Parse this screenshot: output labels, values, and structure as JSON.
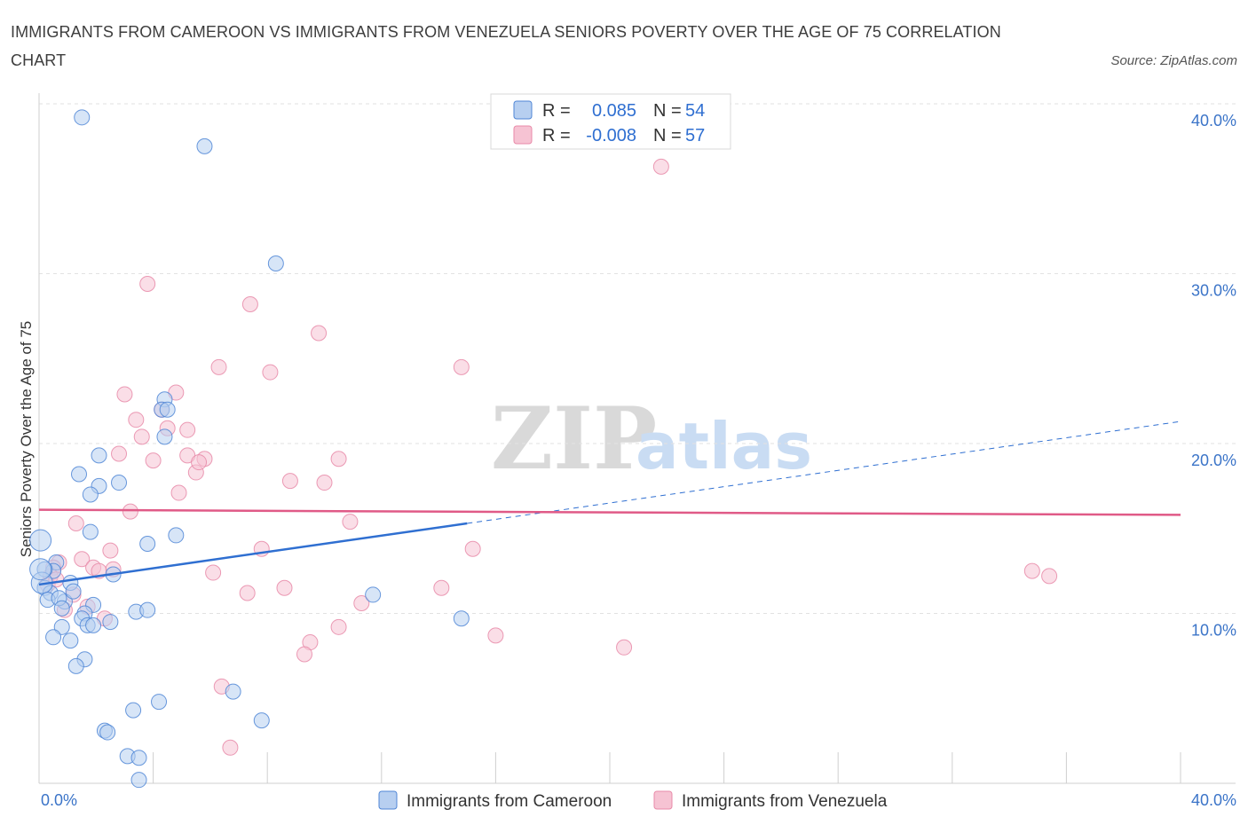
{
  "header": {
    "title": "IMMIGRANTS FROM CAMEROON VS IMMIGRANTS FROM VENEZUELA SENIORS POVERTY OVER THE AGE OF 75 CORRELATION CHART",
    "source": "Source: ZipAtlas.com"
  },
  "watermark": {
    "zip": "ZIP",
    "atlas": "atlas"
  },
  "legend": {
    "rows": [
      {
        "r_label": "R =",
        "r_value": "0.085",
        "n_label": "N =",
        "n_value": "54"
      },
      {
        "r_label": "R =",
        "r_value": "-0.008",
        "n_label": "N =",
        "n_value": "57"
      }
    ]
  },
  "chart_data": {
    "type": "scatter",
    "title": "IMMIGRANTS FROM CAMEROON VS IMMIGRANTS FROM VENEZUELA SENIORS POVERTY OVER THE AGE OF 75 CORRELATION CHART",
    "xlabel": "",
    "ylabel": "Seniors Poverty Over the Age of 75",
    "xlim": [
      0,
      40
    ],
    "ylim": [
      0,
      40
    ],
    "x_tick_labels": [
      "0.0%",
      "40.0%"
    ],
    "y_tick_values": [
      10,
      20,
      30,
      40
    ],
    "y_tick_labels": [
      "10.0%",
      "20.0%",
      "30.0%",
      "40.0%"
    ],
    "grid": true,
    "legend_position": "bottom",
    "series": [
      {
        "name": "Immigrants from Cameroon",
        "color": "#4f86d6",
        "fill": "#b7cff0",
        "trend": {
          "x": [
            0,
            15
          ],
          "y": [
            11.7,
            15.3
          ],
          "dashed_to_x": 40,
          "dashed_to_y": 21.3,
          "color": "#2f6fd1"
        },
        "points": [
          [
            1.5,
            39.2
          ],
          [
            5.8,
            37.5
          ],
          [
            8.3,
            30.6
          ],
          [
            4.4,
            22.6
          ],
          [
            4.3,
            22.0
          ],
          [
            4.5,
            22.0
          ],
          [
            4.4,
            20.4
          ],
          [
            2.1,
            19.3
          ],
          [
            1.4,
            18.2
          ],
          [
            2.8,
            17.7
          ],
          [
            2.1,
            17.5
          ],
          [
            1.8,
            17.0
          ],
          [
            0.05,
            14.3
          ],
          [
            1.8,
            14.8
          ],
          [
            3.8,
            14.1
          ],
          [
            4.8,
            14.6
          ],
          [
            0.6,
            13.0
          ],
          [
            0.5,
            12.5
          ],
          [
            0.2,
            12.6
          ],
          [
            2.6,
            12.3
          ],
          [
            0.2,
            11.5
          ],
          [
            1.1,
            11.8
          ],
          [
            0.4,
            11.2
          ],
          [
            0.1,
            11.8
          ],
          [
            0.3,
            10.8
          ],
          [
            0.9,
            10.7
          ],
          [
            0.7,
            10.9
          ],
          [
            0.8,
            10.3
          ],
          [
            1.9,
            10.5
          ],
          [
            3.4,
            10.1
          ],
          [
            3.8,
            10.2
          ],
          [
            1.6,
            10.0
          ],
          [
            1.5,
            9.7
          ],
          [
            1.7,
            9.3
          ],
          [
            2.5,
            9.5
          ],
          [
            1.9,
            9.3
          ],
          [
            0.8,
            9.2
          ],
          [
            0.5,
            8.6
          ],
          [
            1.1,
            8.4
          ],
          [
            11.7,
            11.1
          ],
          [
            14.8,
            9.7
          ],
          [
            1.6,
            7.3
          ],
          [
            1.3,
            6.9
          ],
          [
            4.2,
            4.8
          ],
          [
            3.3,
            4.3
          ],
          [
            6.8,
            5.4
          ],
          [
            7.8,
            3.7
          ],
          [
            2.3,
            3.1
          ],
          [
            2.4,
            3.0
          ],
          [
            3.1,
            1.6
          ],
          [
            3.5,
            1.5
          ],
          [
            3.5,
            0.2
          ],
          [
            0.05,
            12.6
          ],
          [
            1.2,
            11.3
          ]
        ]
      },
      {
        "name": "Immigrants from Venezuela",
        "color": "#e88aa8",
        "fill": "#f6c3d3",
        "trend": {
          "x": [
            0,
            40
          ],
          "y": [
            16.1,
            15.8
          ],
          "color": "#e05a87"
        },
        "points": [
          [
            21.8,
            36.3
          ],
          [
            3.8,
            29.4
          ],
          [
            7.4,
            28.2
          ],
          [
            9.8,
            26.5
          ],
          [
            6.3,
            24.5
          ],
          [
            8.1,
            24.2
          ],
          [
            14.8,
            24.5
          ],
          [
            3.0,
            22.9
          ],
          [
            4.8,
            23.0
          ],
          [
            3.4,
            21.4
          ],
          [
            4.3,
            22.0
          ],
          [
            4.5,
            20.9
          ],
          [
            3.6,
            20.4
          ],
          [
            5.2,
            20.8
          ],
          [
            2.8,
            19.4
          ],
          [
            5.2,
            19.3
          ],
          [
            5.8,
            19.1
          ],
          [
            5.5,
            18.3
          ],
          [
            4.0,
            19.0
          ],
          [
            5.6,
            18.9
          ],
          [
            10.5,
            19.1
          ],
          [
            8.8,
            17.8
          ],
          [
            10.0,
            17.7
          ],
          [
            4.9,
            17.1
          ],
          [
            3.2,
            16.0
          ],
          [
            1.3,
            15.3
          ],
          [
            10.9,
            15.4
          ],
          [
            2.5,
            13.7
          ],
          [
            7.8,
            13.8
          ],
          [
            15.2,
            13.8
          ],
          [
            1.5,
            13.2
          ],
          [
            1.9,
            12.7
          ],
          [
            2.6,
            12.6
          ],
          [
            2.1,
            12.5
          ],
          [
            6.1,
            12.4
          ],
          [
            0.7,
            13.0
          ],
          [
            0.5,
            12.7
          ],
          [
            0.4,
            12.2
          ],
          [
            1.2,
            11.1
          ],
          [
            8.6,
            11.5
          ],
          [
            14.1,
            11.5
          ],
          [
            7.3,
            11.2
          ],
          [
            11.3,
            10.6
          ],
          [
            0.9,
            10.2
          ],
          [
            1.7,
            10.4
          ],
          [
            2.3,
            9.7
          ],
          [
            10.5,
            9.2
          ],
          [
            16.0,
            8.7
          ],
          [
            9.5,
            8.3
          ],
          [
            9.3,
            7.6
          ],
          [
            20.5,
            8.0
          ],
          [
            34.8,
            12.5
          ],
          [
            35.4,
            12.2
          ],
          [
            6.4,
            5.7
          ],
          [
            6.7,
            2.1
          ],
          [
            0.3,
            11.7
          ],
          [
            0.6,
            12.0
          ]
        ]
      }
    ]
  }
}
